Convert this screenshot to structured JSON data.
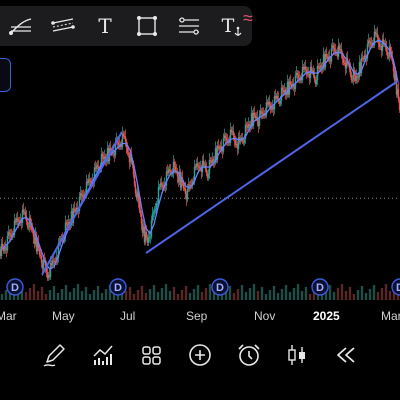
{
  "chart_data": {
    "type": "candlestick",
    "x_tick_labels": [
      "Mar",
      "May",
      "Jul",
      "Sep",
      "Nov",
      "2025",
      "Mar"
    ],
    "x_tick_bold": [
      false,
      false,
      false,
      false,
      false,
      true,
      false
    ],
    "dividend_markers": [
      "D",
      "D",
      "D",
      "D",
      "D"
    ],
    "y_range": [
      0,
      100
    ],
    "close_series": [
      18,
      22,
      26,
      30,
      34,
      36,
      33,
      28,
      22,
      16,
      10,
      5,
      8,
      14,
      20,
      26,
      30,
      34,
      38,
      42,
      46,
      50,
      54,
      58,
      62,
      64,
      66,
      68,
      70,
      72,
      74,
      70,
      62,
      50,
      38,
      26,
      22,
      30,
      40,
      48,
      52,
      56,
      60,
      58,
      54,
      50,
      46,
      52,
      58,
      62,
      60,
      58,
      62,
      66,
      70,
      72,
      74,
      76,
      74,
      72,
      76,
      80,
      84,
      86,
      84,
      88,
      90,
      92,
      94,
      96,
      98,
      100,
      102,
      104,
      106,
      108,
      110,
      108,
      106,
      110,
      114,
      116,
      118,
      120,
      118,
      116,
      112,
      108,
      104,
      110,
      116,
      120,
      124,
      126,
      124,
      122,
      120,
      116,
      104,
      90
    ],
    "trendlines": [
      {
        "from": [
          10,
          5
        ],
        "to": [
          30,
          78
        ]
      },
      {
        "from": [
          36,
          16
        ],
        "to": [
          99,
          104
        ]
      }
    ],
    "horizontal_level": 44,
    "grid": false
  },
  "toolbar": {
    "tools": [
      {
        "name": "trend-line-tool",
        "icon": "trend-line-icon"
      },
      {
        "name": "parallel-channel-tool",
        "icon": "parallel-channel-icon"
      },
      {
        "name": "text-tool",
        "icon": "text-icon",
        "glyph": "T"
      },
      {
        "name": "rectangle-tool",
        "icon": "rectangle-icon"
      },
      {
        "name": "fib-retracement-tool",
        "icon": "fib-retracement-icon"
      },
      {
        "name": "anchored-text-tool",
        "icon": "anchored-text-icon",
        "glyph": "T"
      }
    ],
    "extra_icon": "wave-icon"
  },
  "bottom_bar": {
    "buttons": [
      {
        "name": "draw-button",
        "icon": "pen-icon"
      },
      {
        "name": "indicators-button",
        "icon": "indicators-icon"
      },
      {
        "name": "layouts-button",
        "icon": "grid-icon"
      },
      {
        "name": "add-button",
        "icon": "plus-circle-icon"
      },
      {
        "name": "alert-button",
        "icon": "alarm-clock-icon"
      },
      {
        "name": "chart-type-button",
        "icon": "candles-icon"
      },
      {
        "name": "replay-button",
        "icon": "rewind-icon"
      }
    ]
  },
  "colors": {
    "background": "#000000",
    "up": "#26a69a",
    "down": "#ef5350",
    "ma_line": "#6b7fff",
    "trend_line": "#5065e8",
    "level_line": "#8a8a8a",
    "dividend_marker": "#3d5bd9"
  }
}
